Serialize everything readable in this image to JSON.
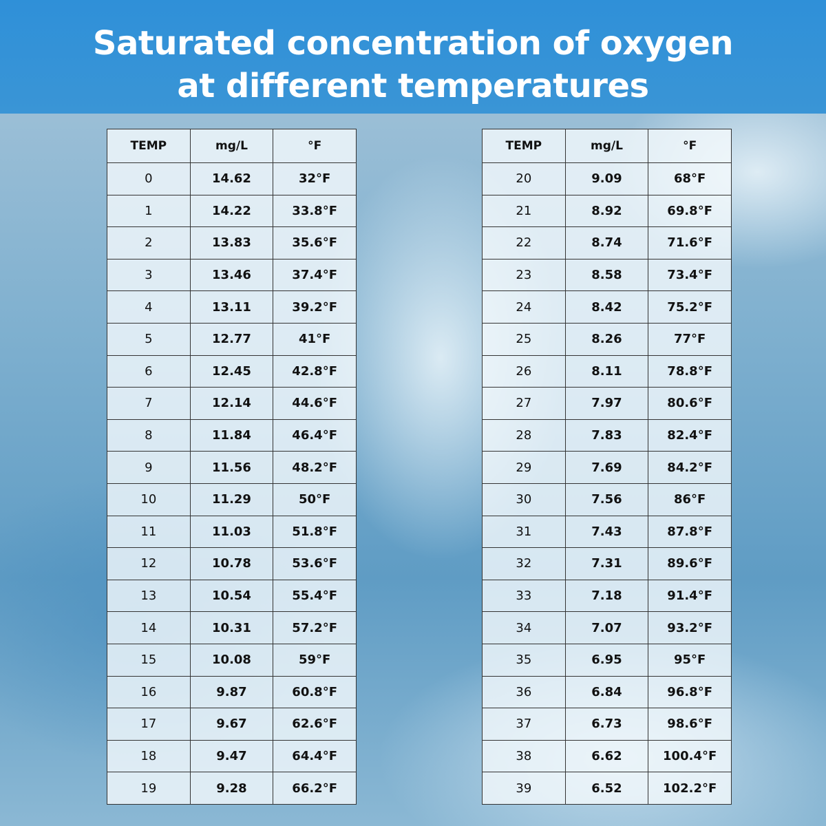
{
  "header": {
    "title_lines": [
      "Saturated concentration of oxygen",
      "at different temperatures"
    ]
  },
  "tables": [
    {
      "header": [
        "TEMP",
        "mg/L",
        "°F"
      ],
      "rows": [
        [
          "0",
          "14.62",
          "32°F"
        ],
        [
          "1",
          "14.22",
          "33.8°F"
        ],
        [
          "2",
          "13.83",
          "35.6°F"
        ],
        [
          "3",
          "13.46",
          "37.4°F"
        ],
        [
          "4",
          "13.11",
          "39.2°F"
        ],
        [
          "5",
          "12.77",
          "41°F"
        ],
        [
          "6",
          "12.45",
          "42.8°F"
        ],
        [
          "7",
          "12.14",
          "44.6°F"
        ],
        [
          "8",
          "11.84",
          "46.4°F"
        ],
        [
          "9",
          "11.56",
          "48.2°F"
        ],
        [
          "10",
          "11.29",
          "50°F"
        ],
        [
          "11",
          "11.03",
          "51.8°F"
        ],
        [
          "12",
          "10.78",
          "53.6°F"
        ],
        [
          "13",
          "10.54",
          "55.4°F"
        ],
        [
          "14",
          "10.31",
          "57.2°F"
        ],
        [
          "15",
          "10.08",
          "59°F"
        ],
        [
          "16",
          "9.87",
          "60.8°F"
        ],
        [
          "17",
          "9.67",
          "62.6°F"
        ],
        [
          "18",
          "9.47",
          "64.4°F"
        ],
        [
          "19",
          "9.28",
          "66.2°F"
        ]
      ]
    },
    {
      "header": [
        "TEMP",
        "mg/L",
        "°F"
      ],
      "rows": [
        [
          "20",
          "9.09",
          "68°F"
        ],
        [
          "21",
          "8.92",
          "69.8°F"
        ],
        [
          "22",
          "8.74",
          "71.6°F"
        ],
        [
          "23",
          "8.58",
          "73.4°F"
        ],
        [
          "24",
          "8.42",
          "75.2°F"
        ],
        [
          "25",
          "8.26",
          "77°F"
        ],
        [
          "26",
          "8.11",
          "78.8°F"
        ],
        [
          "27",
          "7.97",
          "80.6°F"
        ],
        [
          "28",
          "7.83",
          "82.4°F"
        ],
        [
          "29",
          "7.69",
          "84.2°F"
        ],
        [
          "30",
          "7.56",
          "86°F"
        ],
        [
          "31",
          "7.43",
          "87.8°F"
        ],
        [
          "32",
          "7.31",
          "89.6°F"
        ],
        [
          "33",
          "7.18",
          "91.4°F"
        ],
        [
          "34",
          "7.07",
          "93.2°F"
        ],
        [
          "35",
          "6.95",
          "95°F"
        ],
        [
          "36",
          "6.84",
          "96.8°F"
        ],
        [
          "37",
          "6.73",
          "98.6°F"
        ],
        [
          "38",
          "6.62",
          "100.4°F"
        ],
        [
          "39",
          "6.52",
          "102.2°F"
        ]
      ]
    }
  ]
}
